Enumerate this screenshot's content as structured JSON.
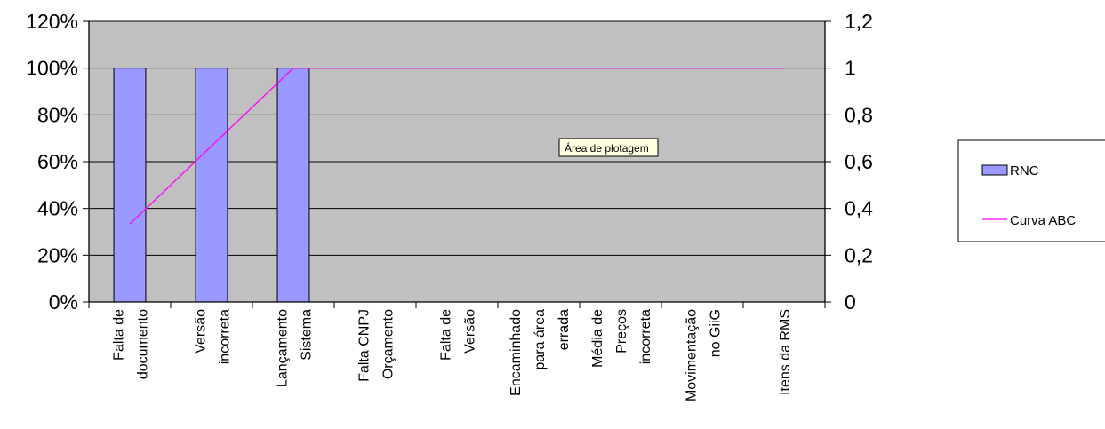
{
  "chart_data": {
    "type": "bar",
    "categories": [
      [
        "Falta de",
        "documento"
      ],
      [
        "Versão",
        "incorreta"
      ],
      [
        "Lançamento",
        "Sistema"
      ],
      [
        "Falta CNPJ",
        "Orçamento"
      ],
      [
        "Falta de",
        "Versão"
      ],
      [
        "Encaminhado",
        "para área",
        "errada"
      ],
      [
        "Média de",
        "Preços",
        "incorreta"
      ],
      [
        "Movimentação",
        "no GiiG"
      ],
      [
        "Itens da RMS"
      ]
    ],
    "series": [
      {
        "name": "RNC",
        "type": "bar",
        "axis": "left",
        "values": [
          1.0,
          1.0,
          1.0,
          0,
          0,
          0,
          0,
          0,
          0
        ],
        "color": "#9999ff"
      },
      {
        "name": "Curva ABC",
        "type": "line",
        "axis": "right",
        "values": [
          0.333,
          0.667,
          1.0,
          1.0,
          1.0,
          1.0,
          1.0,
          1.0,
          1.0
        ],
        "color": "#ff00ff"
      }
    ],
    "left_axis": {
      "ylim": [
        0,
        1.2
      ],
      "ticks": [
        "0%",
        "20%",
        "40%",
        "60%",
        "80%",
        "100%",
        "120%"
      ]
    },
    "right_axis": {
      "ylim": [
        0,
        1.2
      ],
      "ticks": [
        "0",
        "0,2",
        "0,4",
        "0,6",
        "0,8",
        "1",
        "1,2"
      ]
    },
    "grid": true,
    "plot_background": "#c0c0c0",
    "legend_position": "right",
    "tooltip": "Área de plotagem"
  }
}
